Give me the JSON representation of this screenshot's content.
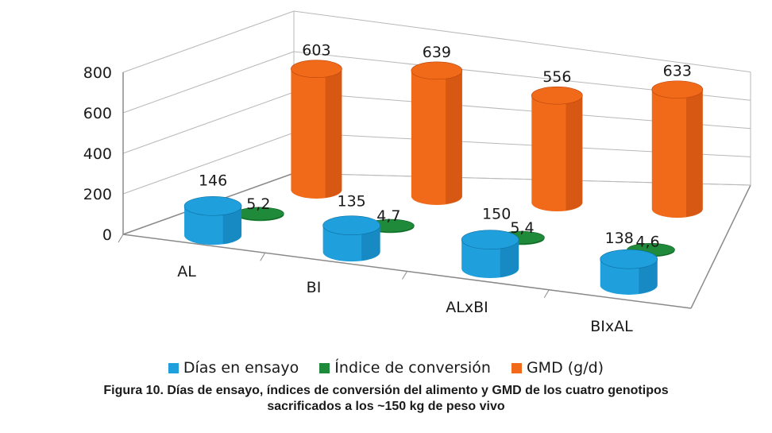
{
  "chart_data": {
    "type": "bar",
    "style": "3d-cylinder",
    "categories": [
      "AL",
      "BI",
      "ALxBI",
      "BIxAL"
    ],
    "ylim": [
      0,
      800
    ],
    "yticks": [
      "0",
      "200",
      "400",
      "600",
      "800"
    ],
    "grid": true,
    "legend_position": "bottom",
    "series": [
      {
        "name": "Días en ensayo",
        "color": "#1fa0dc",
        "values": [
          146,
          135,
          150,
          138
        ],
        "labels": [
          "146",
          "135",
          "150",
          "138"
        ]
      },
      {
        "name": "Índice de conversión",
        "color": "#1f8a3a",
        "values": [
          5.2,
          4.7,
          5.4,
          4.6
        ],
        "labels": [
          "5,2",
          "4,7",
          "5,4",
          "4,6"
        ]
      },
      {
        "name": "GMD (g/d)",
        "color": "#f06a1a",
        "values": [
          603,
          639,
          556,
          633
        ],
        "labels": [
          "603",
          "639",
          "556",
          "633"
        ]
      }
    ]
  },
  "caption": {
    "line1": "Figura 10. Días de ensayo, índices de conversión del alimento y GMD de los cuatro genotipos",
    "line2": "sacrificados a los ~150 kg de peso vivo"
  }
}
